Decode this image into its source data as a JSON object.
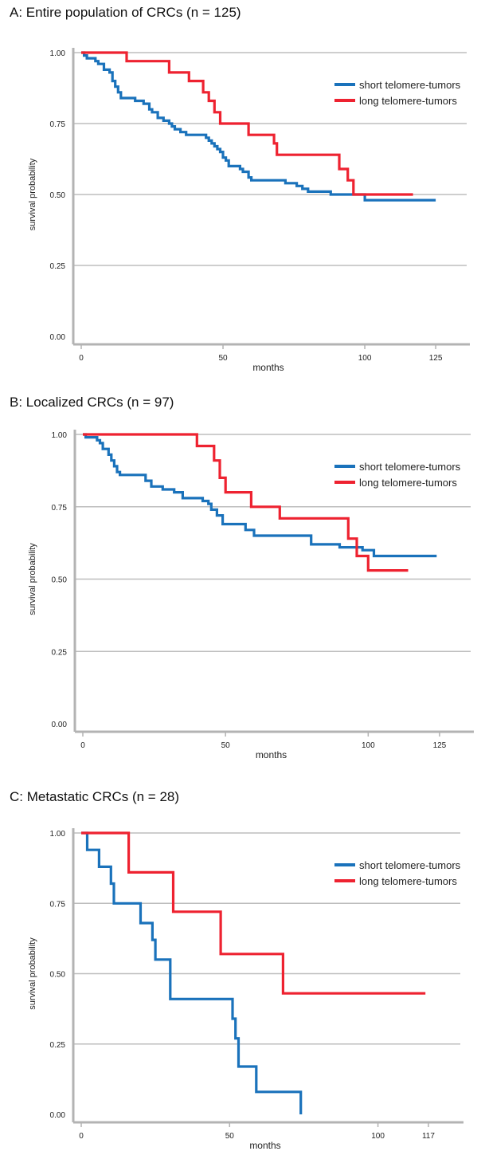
{
  "charts": [
    {
      "title": "A: Entire population of CRCs (n = 125)",
      "chart_data": {
        "type": "line",
        "title": "A: Entire population of CRCs (n = 125)",
        "xlabel": "months",
        "ylabel": "survival probability",
        "xlim": [
          0,
          132
        ],
        "ylim": [
          0,
          1.0
        ],
        "x_ticks": [
          0,
          50,
          100,
          125
        ],
        "y_ticks": [
          0.0,
          0.25,
          0.5,
          0.75,
          1.0
        ],
        "y_tick_labels": [
          "0.00",
          "0.25",
          "0.50",
          "0.75",
          "1.00"
        ],
        "grid": "horizontal",
        "legend_position": "top-right",
        "series": [
          {
            "name": "short telomere-tumors",
            "color": "#1a72bb",
            "step": true,
            "points": [
              [
                0,
                1.0
              ],
              [
                1,
                0.99
              ],
              [
                2,
                0.98
              ],
              [
                5,
                0.97
              ],
              [
                6,
                0.96
              ],
              [
                8,
                0.94
              ],
              [
                10,
                0.93
              ],
              [
                11,
                0.9
              ],
              [
                12,
                0.88
              ],
              [
                13,
                0.86
              ],
              [
                14,
                0.84
              ],
              [
                19,
                0.83
              ],
              [
                22,
                0.82
              ],
              [
                24,
                0.8
              ],
              [
                25,
                0.79
              ],
              [
                27,
                0.77
              ],
              [
                29,
                0.76
              ],
              [
                31,
                0.75
              ],
              [
                32,
                0.74
              ],
              [
                33,
                0.73
              ],
              [
                35,
                0.72
              ],
              [
                37,
                0.71
              ],
              [
                44,
                0.7
              ],
              [
                45,
                0.69
              ],
              [
                46,
                0.68
              ],
              [
                47,
                0.67
              ],
              [
                48,
                0.66
              ],
              [
                49,
                0.65
              ],
              [
                50,
                0.63
              ],
              [
                51,
                0.62
              ],
              [
                52,
                0.6
              ],
              [
                56,
                0.59
              ],
              [
                57,
                0.58
              ],
              [
                59,
                0.56
              ],
              [
                60,
                0.55
              ],
              [
                72,
                0.54
              ],
              [
                76,
                0.53
              ],
              [
                78,
                0.52
              ],
              [
                80,
                0.51
              ],
              [
                88,
                0.5
              ],
              [
                96,
                0.5
              ],
              [
                100,
                0.48
              ],
              [
                125,
                0.48
              ]
            ]
          },
          {
            "name": "long telomere-tumors",
            "color": "#ee2230",
            "step": true,
            "points": [
              [
                0,
                1.0
              ],
              [
                16,
                0.97
              ],
              [
                31,
                0.93
              ],
              [
                38,
                0.9
              ],
              [
                43,
                0.86
              ],
              [
                45,
                0.83
              ],
              [
                47,
                0.79
              ],
              [
                49,
                0.75
              ],
              [
                59,
                0.71
              ],
              [
                68,
                0.68
              ],
              [
                69,
                0.64
              ],
              [
                91,
                0.59
              ],
              [
                94,
                0.55
              ],
              [
                96,
                0.5
              ],
              [
                117,
                0.5
              ]
            ]
          }
        ]
      }
    },
    {
      "title": "B: Localized CRCs (n = 97)",
      "chart_data": {
        "type": "line",
        "title": "B: Localized CRCs (n = 97)",
        "xlabel": "months",
        "ylabel": "survival probability",
        "xlim": [
          0,
          132
        ],
        "ylim": [
          0,
          1.0
        ],
        "x_ticks": [
          0,
          50,
          100,
          125
        ],
        "y_ticks": [
          0.0,
          0.25,
          0.5,
          0.75,
          1.0
        ],
        "y_tick_labels": [
          "0.00",
          "0.25",
          "0.50",
          "0.75",
          "1.00"
        ],
        "grid": "horizontal",
        "legend_position": "top-right",
        "series": [
          {
            "name": "short telomere-tumors",
            "color": "#1a72bb",
            "step": true,
            "points": [
              [
                0,
                1.0
              ],
              [
                1,
                0.99
              ],
              [
                5,
                0.98
              ],
              [
                6,
                0.97
              ],
              [
                7,
                0.95
              ],
              [
                9,
                0.93
              ],
              [
                10,
                0.91
              ],
              [
                11,
                0.89
              ],
              [
                12,
                0.87
              ],
              [
                13,
                0.86
              ],
              [
                22,
                0.84
              ],
              [
                24,
                0.82
              ],
              [
                28,
                0.81
              ],
              [
                32,
                0.8
              ],
              [
                35,
                0.78
              ],
              [
                42,
                0.77
              ],
              [
                44,
                0.76
              ],
              [
                45,
                0.74
              ],
              [
                47,
                0.72
              ],
              [
                49,
                0.69
              ],
              [
                57,
                0.67
              ],
              [
                60,
                0.65
              ],
              [
                80,
                0.62
              ],
              [
                90,
                0.61
              ],
              [
                98,
                0.6
              ],
              [
                102,
                0.58
              ],
              [
                124,
                0.58
              ]
            ]
          },
          {
            "name": "long telomere-tumors",
            "color": "#ee2230",
            "step": true,
            "points": [
              [
                0,
                1.0
              ],
              [
                40,
                0.96
              ],
              [
                46,
                0.91
              ],
              [
                48,
                0.85
              ],
              [
                50,
                0.8
              ],
              [
                59,
                0.75
              ],
              [
                69,
                0.71
              ],
              [
                93,
                0.64
              ],
              [
                96,
                0.58
              ],
              [
                100,
                0.53
              ],
              [
                114,
                0.53
              ]
            ]
          }
        ]
      }
    },
    {
      "title": "C: Metastatic CRCs (n = 28)",
      "chart_data": {
        "type": "line",
        "title": "C: Metastatic CRCs (n = 28)",
        "xlabel": "months",
        "ylabel": "survival probability",
        "xlim": [
          0,
          124
        ],
        "ylim": [
          0,
          1.0
        ],
        "x_ticks": [
          0,
          50,
          100,
          117
        ],
        "y_ticks": [
          0.0,
          0.25,
          0.5,
          0.75,
          1.0
        ],
        "y_tick_labels": [
          "0.00",
          "0.25",
          "0.50",
          "0.75",
          "1.00"
        ],
        "grid": "horizontal",
        "legend_position": "top-right",
        "series": [
          {
            "name": "short telomere-tumors",
            "color": "#1a72bb",
            "step": true,
            "points": [
              [
                0,
                1.0
              ],
              [
                2,
                0.94
              ],
              [
                6,
                0.88
              ],
              [
                10,
                0.82
              ],
              [
                11,
                0.75
              ],
              [
                20,
                0.68
              ],
              [
                24,
                0.62
              ],
              [
                25,
                0.55
              ],
              [
                30,
                0.41
              ],
              [
                51,
                0.34
              ],
              [
                52,
                0.27
              ],
              [
                53,
                0.17
              ],
              [
                59,
                0.08
              ],
              [
                74,
                0.0
              ]
            ]
          },
          {
            "name": "long telomere-tumors",
            "color": "#ee2230",
            "step": true,
            "points": [
              [
                0,
                1.0
              ],
              [
                16,
                0.86
              ],
              [
                31,
                0.72
              ],
              [
                47,
                0.57
              ],
              [
                68,
                0.43
              ],
              [
                116,
                0.43
              ]
            ]
          }
        ]
      }
    }
  ]
}
